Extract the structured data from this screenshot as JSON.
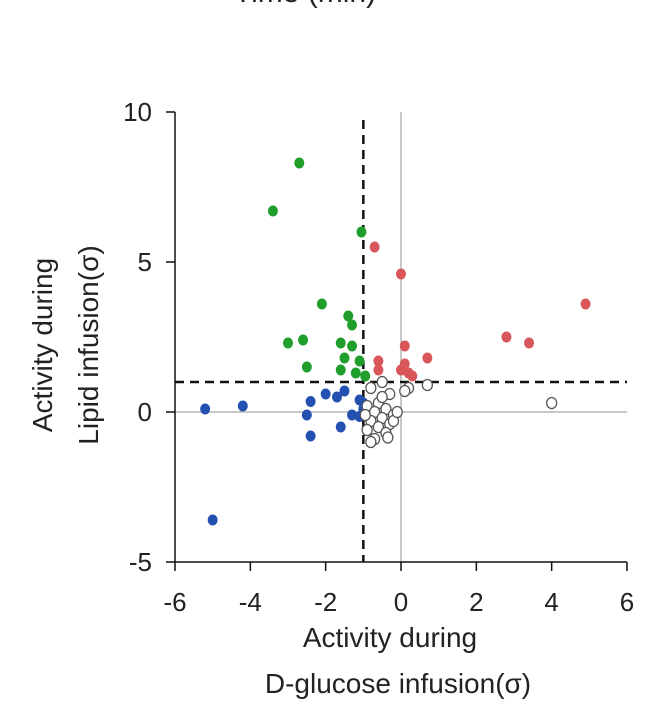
{
  "chart_data": {
    "type": "scatter",
    "top_text": "Time (min)",
    "xlabel_lines": [
      "Activity during",
      "D-glucose infusion(σ)"
    ],
    "ylabel_lines": [
      "Activity during",
      "Lipid infusion(σ)"
    ],
    "xlim": [
      -6,
      6
    ],
    "ylim": [
      -5,
      10
    ],
    "xticks": [
      -6,
      -4,
      -2,
      0,
      2,
      4,
      6
    ],
    "xtick_labels": [
      "-6",
      "-4",
      "-2",
      "0",
      "2",
      "4",
      "6"
    ],
    "yticks": [
      -5,
      0,
      5,
      10
    ],
    "ytick_labels": [
      "-5",
      "0",
      "5",
      "10"
    ],
    "zero_lines": {
      "x": 0,
      "y": 0,
      "color": "#b5b5b5"
    },
    "threshold_lines": {
      "x": -1,
      "y": 1,
      "color": "#111111",
      "dash": true
    },
    "grid": false,
    "legend": false,
    "series": [
      {
        "color": "#1f9e2b",
        "fill": true,
        "points": [
          [
            -2.7,
            8.3
          ],
          [
            -3.4,
            6.7
          ],
          [
            -1.05,
            6.0
          ],
          [
            -2.1,
            3.6
          ],
          [
            -1.4,
            3.2
          ],
          [
            -1.3,
            2.9
          ],
          [
            -2.6,
            2.4
          ],
          [
            -3.0,
            2.3
          ],
          [
            -1.6,
            2.3
          ],
          [
            -1.3,
            2.2
          ],
          [
            -1.5,
            1.8
          ],
          [
            -1.1,
            1.7
          ],
          [
            -2.5,
            1.5
          ],
          [
            -1.2,
            1.3
          ],
          [
            -1.6,
            1.4
          ],
          [
            -0.95,
            1.2
          ]
        ]
      },
      {
        "color": "#d9565a",
        "fill": true,
        "points": [
          [
            -0.7,
            5.5
          ],
          [
            0.0,
            4.6
          ],
          [
            4.9,
            3.6
          ],
          [
            2.8,
            2.5
          ],
          [
            3.4,
            2.3
          ],
          [
            0.1,
            2.2
          ],
          [
            0.7,
            1.8
          ],
          [
            -0.6,
            1.7
          ],
          [
            0.1,
            1.6
          ],
          [
            -0.6,
            1.4
          ],
          [
            0.0,
            1.4
          ],
          [
            0.2,
            1.3
          ],
          [
            0.3,
            1.2
          ]
        ]
      },
      {
        "color": "#2450b2",
        "fill": true,
        "points": [
          [
            -5.2,
            0.1
          ],
          [
            -4.2,
            0.2
          ],
          [
            -5.0,
            -3.6
          ],
          [
            -2.4,
            0.35
          ],
          [
            -2.0,
            0.6
          ],
          [
            -1.5,
            0.7
          ],
          [
            -1.7,
            0.5
          ],
          [
            -1.1,
            0.4
          ],
          [
            -1.0,
            0.1
          ],
          [
            -2.5,
            -0.1
          ],
          [
            -1.3,
            -0.1
          ],
          [
            -1.6,
            -0.5
          ],
          [
            -2.4,
            -0.8
          ],
          [
            -1.1,
            -0.15
          ],
          [
            -1.0,
            0.3
          ]
        ]
      },
      {
        "color": "#555555",
        "fill": false,
        "points": [
          [
            4.0,
            0.3
          ],
          [
            0.7,
            0.9
          ],
          [
            0.2,
            0.8
          ],
          [
            -0.5,
            1.0
          ],
          [
            -0.8,
            0.8
          ],
          [
            -0.3,
            0.6
          ],
          [
            -0.6,
            0.3
          ],
          [
            -0.9,
            0.2
          ],
          [
            -0.4,
            0.1
          ],
          [
            -0.7,
            0.0
          ],
          [
            -0.2,
            -0.1
          ],
          [
            -0.5,
            -0.2
          ],
          [
            -0.8,
            -0.3
          ],
          [
            -0.3,
            -0.4
          ],
          [
            -0.6,
            -0.5
          ],
          [
            -0.9,
            -0.6
          ],
          [
            -0.4,
            -0.7
          ],
          [
            -0.7,
            -0.9
          ],
          [
            -0.2,
            -0.3
          ],
          [
            -0.5,
            0.5
          ],
          [
            -0.1,
            0.0
          ],
          [
            -0.95,
            -0.1
          ],
          [
            -0.35,
            -0.85
          ],
          [
            0.1,
            0.7
          ],
          [
            -0.8,
            -1.0
          ]
        ]
      }
    ]
  }
}
